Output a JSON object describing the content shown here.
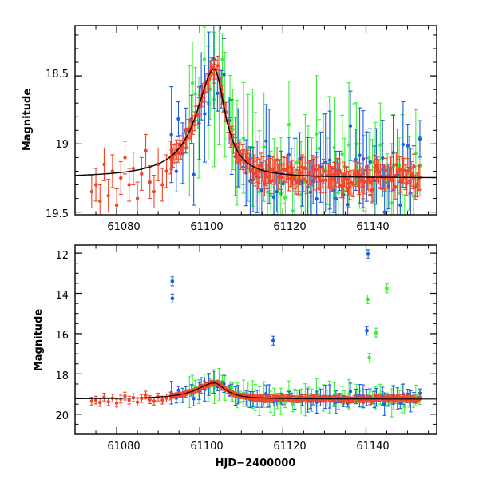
{
  "figure": {
    "xlabel": "HJD−2400000",
    "colors": {
      "blue": "#1f5fe0",
      "green": "#3ef03e",
      "red": "#f2452a",
      "model": "#000000"
    }
  },
  "chart_data": [
    {
      "type": "scatter",
      "title": "",
      "xlabel": "",
      "ylabel": "Magnitude",
      "xlim": [
        61070,
        61157
      ],
      "ylim": [
        19.52,
        18.13
      ],
      "y_inverted": true,
      "xticks": [
        61080,
        61100,
        61120,
        61140
      ],
      "yticks": [
        18.5,
        19,
        19.5
      ],
      "ytick_labels": [
        "18.5",
        "19",
        "19.5"
      ],
      "series": [
        {
          "name": "red",
          "color": "#f2452a",
          "x_range": [
            61074,
            61153
          ],
          "points": [
            [
              61074,
              19.35,
              0.12
            ],
            [
              61075,
              19.3,
              0.12
            ],
            [
              61076,
              19.42,
              0.12
            ],
            [
              61077,
              19.15,
              0.12
            ],
            [
              61078,
              19.38,
              0.12
            ],
            [
              61079,
              19.2,
              0.12
            ],
            [
              61080,
              19.45,
              0.12
            ],
            [
              61081,
              19.25,
              0.12
            ],
            [
              61082,
              19.1,
              0.12
            ],
            [
              61083,
              19.3,
              0.12
            ],
            [
              61084,
              19.18,
              0.12
            ],
            [
              61085,
              19.4,
              0.12
            ],
            [
              61086,
              19.22,
              0.12
            ],
            [
              61087,
              19.05,
              0.12
            ],
            [
              61088,
              19.28,
              0.12
            ],
            [
              61089,
              19.35,
              0.12
            ],
            [
              61090,
              19.15,
              0.12
            ],
            [
              61091,
              19.3,
              0.12
            ],
            [
              61092,
              19.2,
              0.12
            ],
            [
              61093,
              19.1,
              0.12
            ]
          ]
        },
        {
          "name": "blue",
          "color": "#1f5fe0",
          "x_range": [
            61093,
            61153
          ],
          "points": []
        },
        {
          "name": "green",
          "color": "#3ef03e",
          "x_range": [
            61097,
            61153
          ],
          "points": []
        }
      ],
      "model_curve": {
        "baseline": 19.25,
        "peak_x": 61103.5,
        "peak_y": 18.45
      }
    },
    {
      "type": "scatter",
      "title": "",
      "xlabel": "HJD−2400000",
      "ylabel": "Magnitude",
      "xlim": [
        61070,
        61157
      ],
      "ylim": [
        21.0,
        11.6
      ],
      "y_inverted": true,
      "xticks": [
        61080,
        61100,
        61120,
        61140
      ],
      "yticks": [
        12,
        14,
        16,
        18,
        20
      ],
      "ytick_labels": [
        "12",
        "14",
        "16",
        "18",
        "20"
      ],
      "outliers": [
        {
          "series": "blue",
          "x": 61093.4,
          "y": 13.4
        },
        {
          "series": "blue",
          "x": 61093.4,
          "y": 14.25
        },
        {
          "series": "blue",
          "x": 61117.7,
          "y": 16.35
        },
        {
          "series": "blue",
          "x": 61140.5,
          "y": 12.05
        },
        {
          "series": "blue",
          "x": 61140.2,
          "y": 15.85
        },
        {
          "series": "green",
          "x": 61140.4,
          "y": 14.3
        },
        {
          "series": "green",
          "x": 61142.4,
          "y": 15.95
        },
        {
          "series": "green",
          "x": 61145.0,
          "y": 13.75
        },
        {
          "series": "green",
          "x": 61140.8,
          "y": 17.2
        }
      ]
    }
  ]
}
